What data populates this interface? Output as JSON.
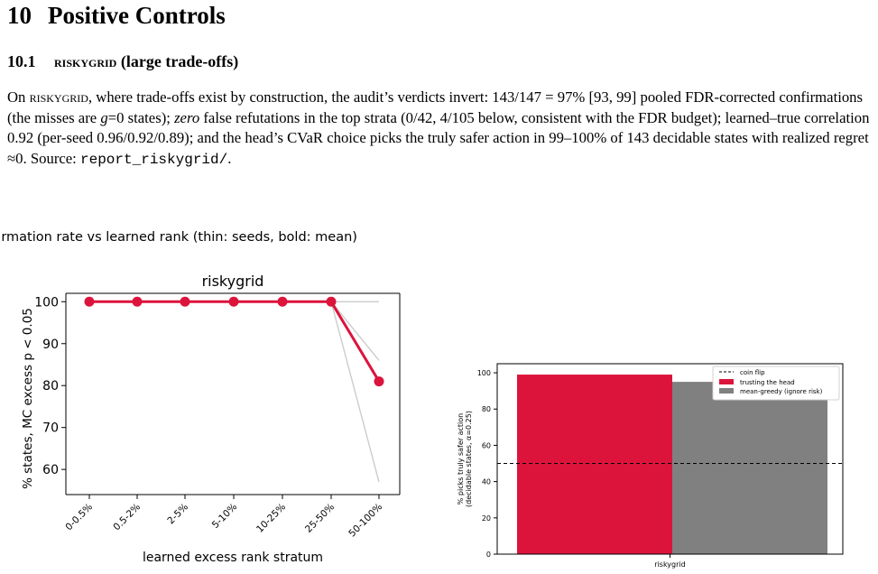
{
  "section": {
    "number": "10",
    "title": "Positive Controls"
  },
  "subsection": {
    "number": "10.1",
    "name": "riskygrid",
    "title_rest": " (large trade-offs)"
  },
  "paragraph": {
    "s1": "On ",
    "env": "riskygrid",
    "s2": ", where trade-offs exist by construction, the audit’s verdicts invert: 143/147 = 97% [93, 99] pooled FDR-corrected confirmations (the misses are ",
    "g": "g",
    "s3": "=0 states); ",
    "zero": "zero",
    "s4": " false refutations in the top strata (0/42, 4/105 below, consistent with the FDR budget); learned–true correlation 0.92 (per-seed 0.96/0.92/0.89); and the head’s CVaR choice picks the truly safer action in 99–100% of 143 decidable states with realized regret ≈0. Source: ",
    "source": "report_riskygrid/",
    "s5": "."
  },
  "figure_caption": "Confirmation rate vs learned rank (thin: seeds, bold: mean)",
  "chart_data": [
    {
      "type": "line",
      "title": "riskygrid",
      "xlabel": "learned excess rank stratum",
      "ylabel": "% states, MC excess p < 0.05",
      "categories": [
        "0-0.5%",
        "0.5-2%",
        "2-5%",
        "5-10%",
        "10-25%",
        "25-50%",
        "50-100%"
      ],
      "ylim": [
        54,
        102
      ],
      "yticks": [
        60,
        70,
        80,
        90,
        100
      ],
      "grid": false,
      "series": [
        {
          "role": "mean",
          "values": [
            100,
            100,
            100,
            100,
            100,
            100,
            81
          ],
          "color": "#dc143c"
        },
        {
          "role": "seed",
          "values": [
            100,
            100,
            100,
            100,
            100,
            100,
            100
          ],
          "color": "#cccccc"
        },
        {
          "role": "seed",
          "values": [
            100,
            100,
            100,
            100,
            100,
            100,
            86
          ],
          "color": "#cccccc"
        },
        {
          "role": "seed",
          "values": [
            100,
            100,
            100,
            100,
            100,
            100,
            57
          ],
          "color": "#cccccc"
        }
      ]
    },
    {
      "type": "bar",
      "xlabel": "riskygrid",
      "ylabel_line1": "% picks truly safer action",
      "ylabel_line2": "(decidable states, α=0.25)",
      "categories": [
        "riskygrid"
      ],
      "ylim": [
        0,
        105
      ],
      "yticks": [
        0,
        20,
        40,
        60,
        80,
        100
      ],
      "reference_line": {
        "name": "coin flip",
        "value": 50
      },
      "legend_placement": "top-right",
      "series": [
        {
          "name": "trusting the head",
          "values": [
            99
          ],
          "color": "#dc143c"
        },
        {
          "name": "mean-greedy (ignore risk)",
          "values": [
            95
          ],
          "color": "#808080"
        }
      ]
    }
  ]
}
